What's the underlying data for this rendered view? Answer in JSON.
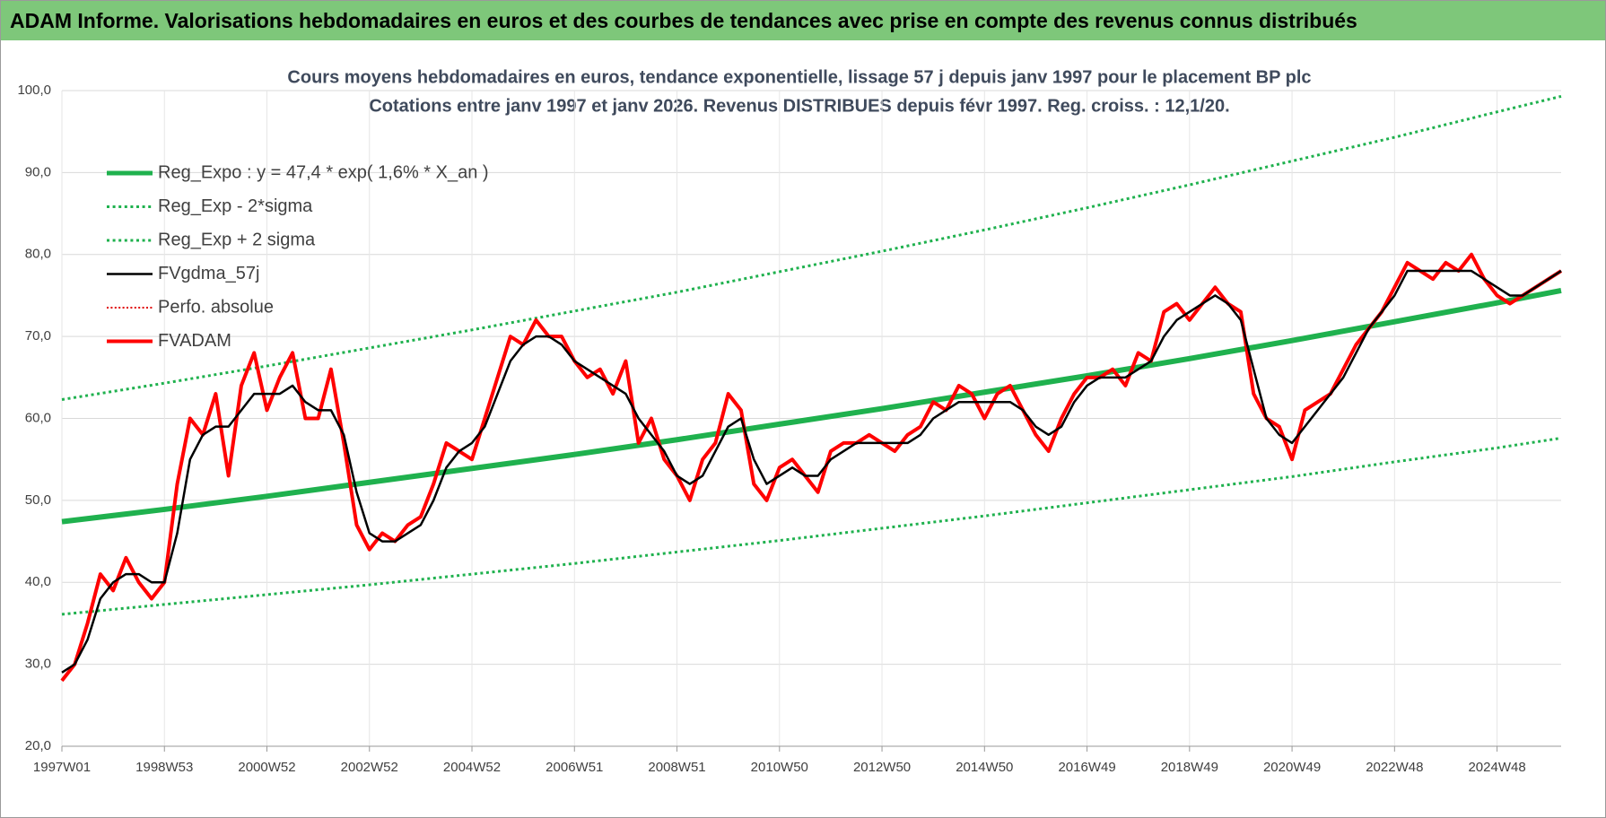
{
  "header": {
    "title": "ADAM Informe. Valorisations hebdomadaires en euros et des courbes de tendances avec prise en compte des revenus connus distribués"
  },
  "chart_data": {
    "type": "line",
    "title": "Cours moyens hebdomadaires en euros, tendance exponentielle, lissage 57 j depuis janv 1997 pour le placement BP plc",
    "subtitle": "Cotations entre janv 1997 et janv 2026. Revenus DISTRIBUES depuis févr 1997. Reg. croiss. : 12,1/20.",
    "xlim": [
      0,
      1521
    ],
    "ylim": [
      20,
      100
    ],
    "grid": true,
    "xticks": [
      {
        "value": 0,
        "label": "1997W01"
      },
      {
        "value": 104,
        "label": "1998W53"
      },
      {
        "value": 208,
        "label": "2000W52"
      },
      {
        "value": 312,
        "label": "2002W52"
      },
      {
        "value": 416,
        "label": "2004W52"
      },
      {
        "value": 520,
        "label": "2006W51"
      },
      {
        "value": 624,
        "label": "2008W51"
      },
      {
        "value": 728,
        "label": "2010W50"
      },
      {
        "value": 832,
        "label": "2012W50"
      },
      {
        "value": 936,
        "label": "2014W50"
      },
      {
        "value": 1040,
        "label": "2016W49"
      },
      {
        "value": 1144,
        "label": "2018W49"
      },
      {
        "value": 1248,
        "label": "2020W49"
      },
      {
        "value": 1352,
        "label": "2022W48"
      },
      {
        "value": 1456,
        "label": "2024W48"
      }
    ],
    "yticks": [
      {
        "value": 20,
        "label": "20,0"
      },
      {
        "value": 30,
        "label": "30,0"
      },
      {
        "value": 40,
        "label": "40,0"
      },
      {
        "value": 50,
        "label": "50,0"
      },
      {
        "value": 60,
        "label": "60,0"
      },
      {
        "value": 70,
        "label": "70,0"
      },
      {
        "value": 80,
        "label": "80,0"
      },
      {
        "value": 90,
        "label": "90,0"
      },
      {
        "value": 100,
        "label": "100,0"
      }
    ],
    "series": [
      {
        "name": "Reg_Expo : y = 47,4 * exp( 1,6% *  X_an )",
        "color": "#1fb14e",
        "style": "solid",
        "width": 6,
        "x": [
          0,
          104,
          208,
          312,
          416,
          520,
          624,
          728,
          832,
          936,
          1040,
          1144,
          1248,
          1352,
          1456,
          1521
        ],
        "values": [
          47.4,
          48.9,
          50.5,
          52.2,
          53.9,
          55.6,
          57.4,
          59.3,
          61.2,
          63.2,
          65.2,
          67.3,
          69.5,
          71.8,
          74.1,
          75.6
        ]
      },
      {
        "name": "Reg_Exp - 2*sigma",
        "color": "#1fb14e",
        "style": "dotted",
        "width": 3,
        "x": [
          0,
          104,
          208,
          312,
          416,
          520,
          624,
          728,
          832,
          936,
          1040,
          1144,
          1248,
          1352,
          1456,
          1521
        ],
        "values": [
          36.1,
          37.3,
          38.5,
          39.7,
          41.0,
          42.3,
          43.7,
          45.1,
          46.6,
          48.1,
          49.7,
          51.3,
          52.9,
          54.7,
          56.4,
          57.6
        ]
      },
      {
        "name": "Reg_Exp + 2 sigma",
        "color": "#1fb14e",
        "style": "dotted",
        "width": 3,
        "x": [
          0,
          104,
          208,
          312,
          416,
          520,
          624,
          728,
          832,
          936,
          1040,
          1144,
          1248,
          1352,
          1456,
          1521
        ],
        "values": [
          62.3,
          64.3,
          66.4,
          68.6,
          70.8,
          73.1,
          75.4,
          77.9,
          80.4,
          83.0,
          85.7,
          88.5,
          91.4,
          94.3,
          97.4,
          99.3
        ]
      },
      {
        "name": "FVgdma_57j",
        "color": "#000000",
        "style": "solid",
        "width": 2.5,
        "x": [
          0,
          13,
          26,
          39,
          52,
          65,
          78,
          91,
          104,
          117,
          130,
          143,
          156,
          169,
          182,
          195,
          208,
          221,
          234,
          247,
          260,
          273,
          286,
          299,
          312,
          325,
          338,
          351,
          364,
          377,
          390,
          403,
          416,
          429,
          442,
          455,
          468,
          481,
          494,
          507,
          520,
          533,
          546,
          559,
          572,
          585,
          598,
          611,
          624,
          637,
          650,
          663,
          676,
          689,
          702,
          715,
          728,
          741,
          754,
          767,
          780,
          793,
          806,
          819,
          832,
          845,
          858,
          871,
          884,
          897,
          910,
          923,
          936,
          949,
          962,
          975,
          988,
          1001,
          1014,
          1027,
          1040,
          1053,
          1066,
          1079,
          1092,
          1105,
          1118,
          1131,
          1144,
          1157,
          1170,
          1183,
          1196,
          1209,
          1222,
          1235,
          1248,
          1261,
          1274,
          1287,
          1300,
          1313,
          1326,
          1339,
          1352,
          1365,
          1378,
          1391,
          1404,
          1417,
          1430,
          1443,
          1456,
          1469,
          1482,
          1495,
          1508,
          1521
        ],
        "values": [
          29,
          30,
          33,
          38,
          40,
          41,
          41,
          40,
          40,
          46,
          55,
          58,
          59,
          59,
          61,
          63,
          63,
          63,
          64,
          62,
          61,
          61,
          58,
          51,
          46,
          45,
          45,
          46,
          47,
          50,
          54,
          56,
          57,
          59,
          63,
          67,
          69,
          70,
          70,
          69,
          67,
          66,
          65,
          64,
          63,
          60,
          58,
          56,
          53,
          52,
          53,
          56,
          59,
          60,
          55,
          52,
          53,
          54,
          53,
          53,
          55,
          56,
          57,
          57,
          57,
          57,
          57,
          58,
          60,
          61,
          62,
          62,
          62,
          62,
          62,
          61,
          59,
          58,
          59,
          62,
          64,
          65,
          65,
          65,
          66,
          67,
          70,
          72,
          73,
          74,
          75,
          74,
          72,
          66,
          60,
          58,
          57,
          59,
          61,
          63,
          65,
          68,
          71,
          73,
          75,
          78,
          78,
          78,
          78,
          78,
          78,
          77,
          76,
          75,
          75,
          76,
          77,
          78
        ]
      },
      {
        "name": "Perfo. absolue",
        "color": "#e00000",
        "style": "dotted",
        "width": 2,
        "x": [
          0,
          13,
          26,
          39,
          52,
          65,
          78,
          91,
          104,
          117,
          130,
          143,
          156,
          169,
          182,
          195,
          208,
          221,
          234,
          247,
          260,
          273,
          286,
          299,
          312,
          325,
          338,
          351,
          364,
          377,
          390,
          403,
          416,
          429,
          442,
          455,
          468,
          481,
          494,
          507,
          520,
          533,
          546,
          559,
          572,
          585,
          598,
          611,
          624,
          637,
          650,
          663,
          676,
          689,
          702,
          715,
          728,
          741,
          754,
          767,
          780,
          793,
          806,
          819,
          832,
          845,
          858,
          871,
          884,
          897,
          910,
          923,
          936,
          949,
          962,
          975,
          988,
          1001,
          1014,
          1027,
          1040,
          1053,
          1066,
          1079,
          1092,
          1105,
          1118,
          1131,
          1144,
          1157,
          1170,
          1183,
          1196,
          1209,
          1222,
          1235,
          1248,
          1261,
          1274,
          1287,
          1300,
          1313,
          1326,
          1339,
          1352,
          1365,
          1378,
          1391,
          1404,
          1417,
          1430,
          1443,
          1456,
          1469,
          1482,
          1495,
          1508,
          1521
        ],
        "values": [
          28,
          30,
          35,
          41,
          39,
          43,
          40,
          38,
          40,
          52,
          60,
          58,
          63,
          53,
          64,
          68,
          61,
          65,
          68,
          60,
          60,
          66,
          57,
          47,
          44,
          46,
          45,
          47,
          48,
          52,
          57,
          56,
          55,
          60,
          65,
          70,
          69,
          72,
          70,
          70,
          67,
          65,
          66,
          63,
          67,
          57,
          60,
          55,
          53,
          50,
          55,
          57,
          63,
          61,
          52,
          50,
          54,
          55,
          53,
          51,
          56,
          57,
          57,
          58,
          57,
          56,
          58,
          59,
          62,
          61,
          64,
          63,
          60,
          63,
          64,
          61,
          58,
          56,
          60,
          63,
          65,
          65,
          66,
          64,
          68,
          67,
          73,
          74,
          72,
          74,
          76,
          74,
          73,
          63,
          60,
          59,
          55,
          61,
          62,
          63,
          66,
          69,
          71,
          73,
          76,
          79,
          78,
          77,
          79,
          78,
          80,
          77,
          75,
          74,
          75,
          76,
          77,
          78
        ]
      },
      {
        "name": "FVADAM",
        "color": "#ff0000",
        "style": "solid",
        "width": 4,
        "x": [
          0,
          13,
          26,
          39,
          52,
          65,
          78,
          91,
          104,
          117,
          130,
          143,
          156,
          169,
          182,
          195,
          208,
          221,
          234,
          247,
          260,
          273,
          286,
          299,
          312,
          325,
          338,
          351,
          364,
          377,
          390,
          403,
          416,
          429,
          442,
          455,
          468,
          481,
          494,
          507,
          520,
          533,
          546,
          559,
          572,
          585,
          598,
          611,
          624,
          637,
          650,
          663,
          676,
          689,
          702,
          715,
          728,
          741,
          754,
          767,
          780,
          793,
          806,
          819,
          832,
          845,
          858,
          871,
          884,
          897,
          910,
          923,
          936,
          949,
          962,
          975,
          988,
          1001,
          1014,
          1027,
          1040,
          1053,
          1066,
          1079,
          1092,
          1105,
          1118,
          1131,
          1144,
          1157,
          1170,
          1183,
          1196,
          1209,
          1222,
          1235,
          1248,
          1261,
          1274,
          1287,
          1300,
          1313,
          1326,
          1339,
          1352,
          1365,
          1378,
          1391,
          1404,
          1417,
          1430,
          1443,
          1456,
          1469,
          1482,
          1495,
          1508,
          1521
        ],
        "values": [
          28,
          30,
          35,
          41,
          39,
          43,
          40,
          38,
          40,
          52,
          60,
          58,
          63,
          53,
          64,
          68,
          61,
          65,
          68,
          60,
          60,
          66,
          57,
          47,
          44,
          46,
          45,
          47,
          48,
          52,
          57,
          56,
          55,
          60,
          65,
          70,
          69,
          72,
          70,
          70,
          67,
          65,
          66,
          63,
          67,
          57,
          60,
          55,
          53,
          50,
          55,
          57,
          63,
          61,
          52,
          50,
          54,
          55,
          53,
          51,
          56,
          57,
          57,
          58,
          57,
          56,
          58,
          59,
          62,
          61,
          64,
          63,
          60,
          63,
          64,
          61,
          58,
          56,
          60,
          63,
          65,
          65,
          66,
          64,
          68,
          67,
          73,
          74,
          72,
          74,
          76,
          74,
          73,
          63,
          60,
          59,
          55,
          61,
          62,
          63,
          66,
          69,
          71,
          73,
          76,
          79,
          78,
          77,
          79,
          78,
          80,
          77,
          75,
          74,
          75,
          76,
          77,
          78
        ]
      }
    ]
  }
}
